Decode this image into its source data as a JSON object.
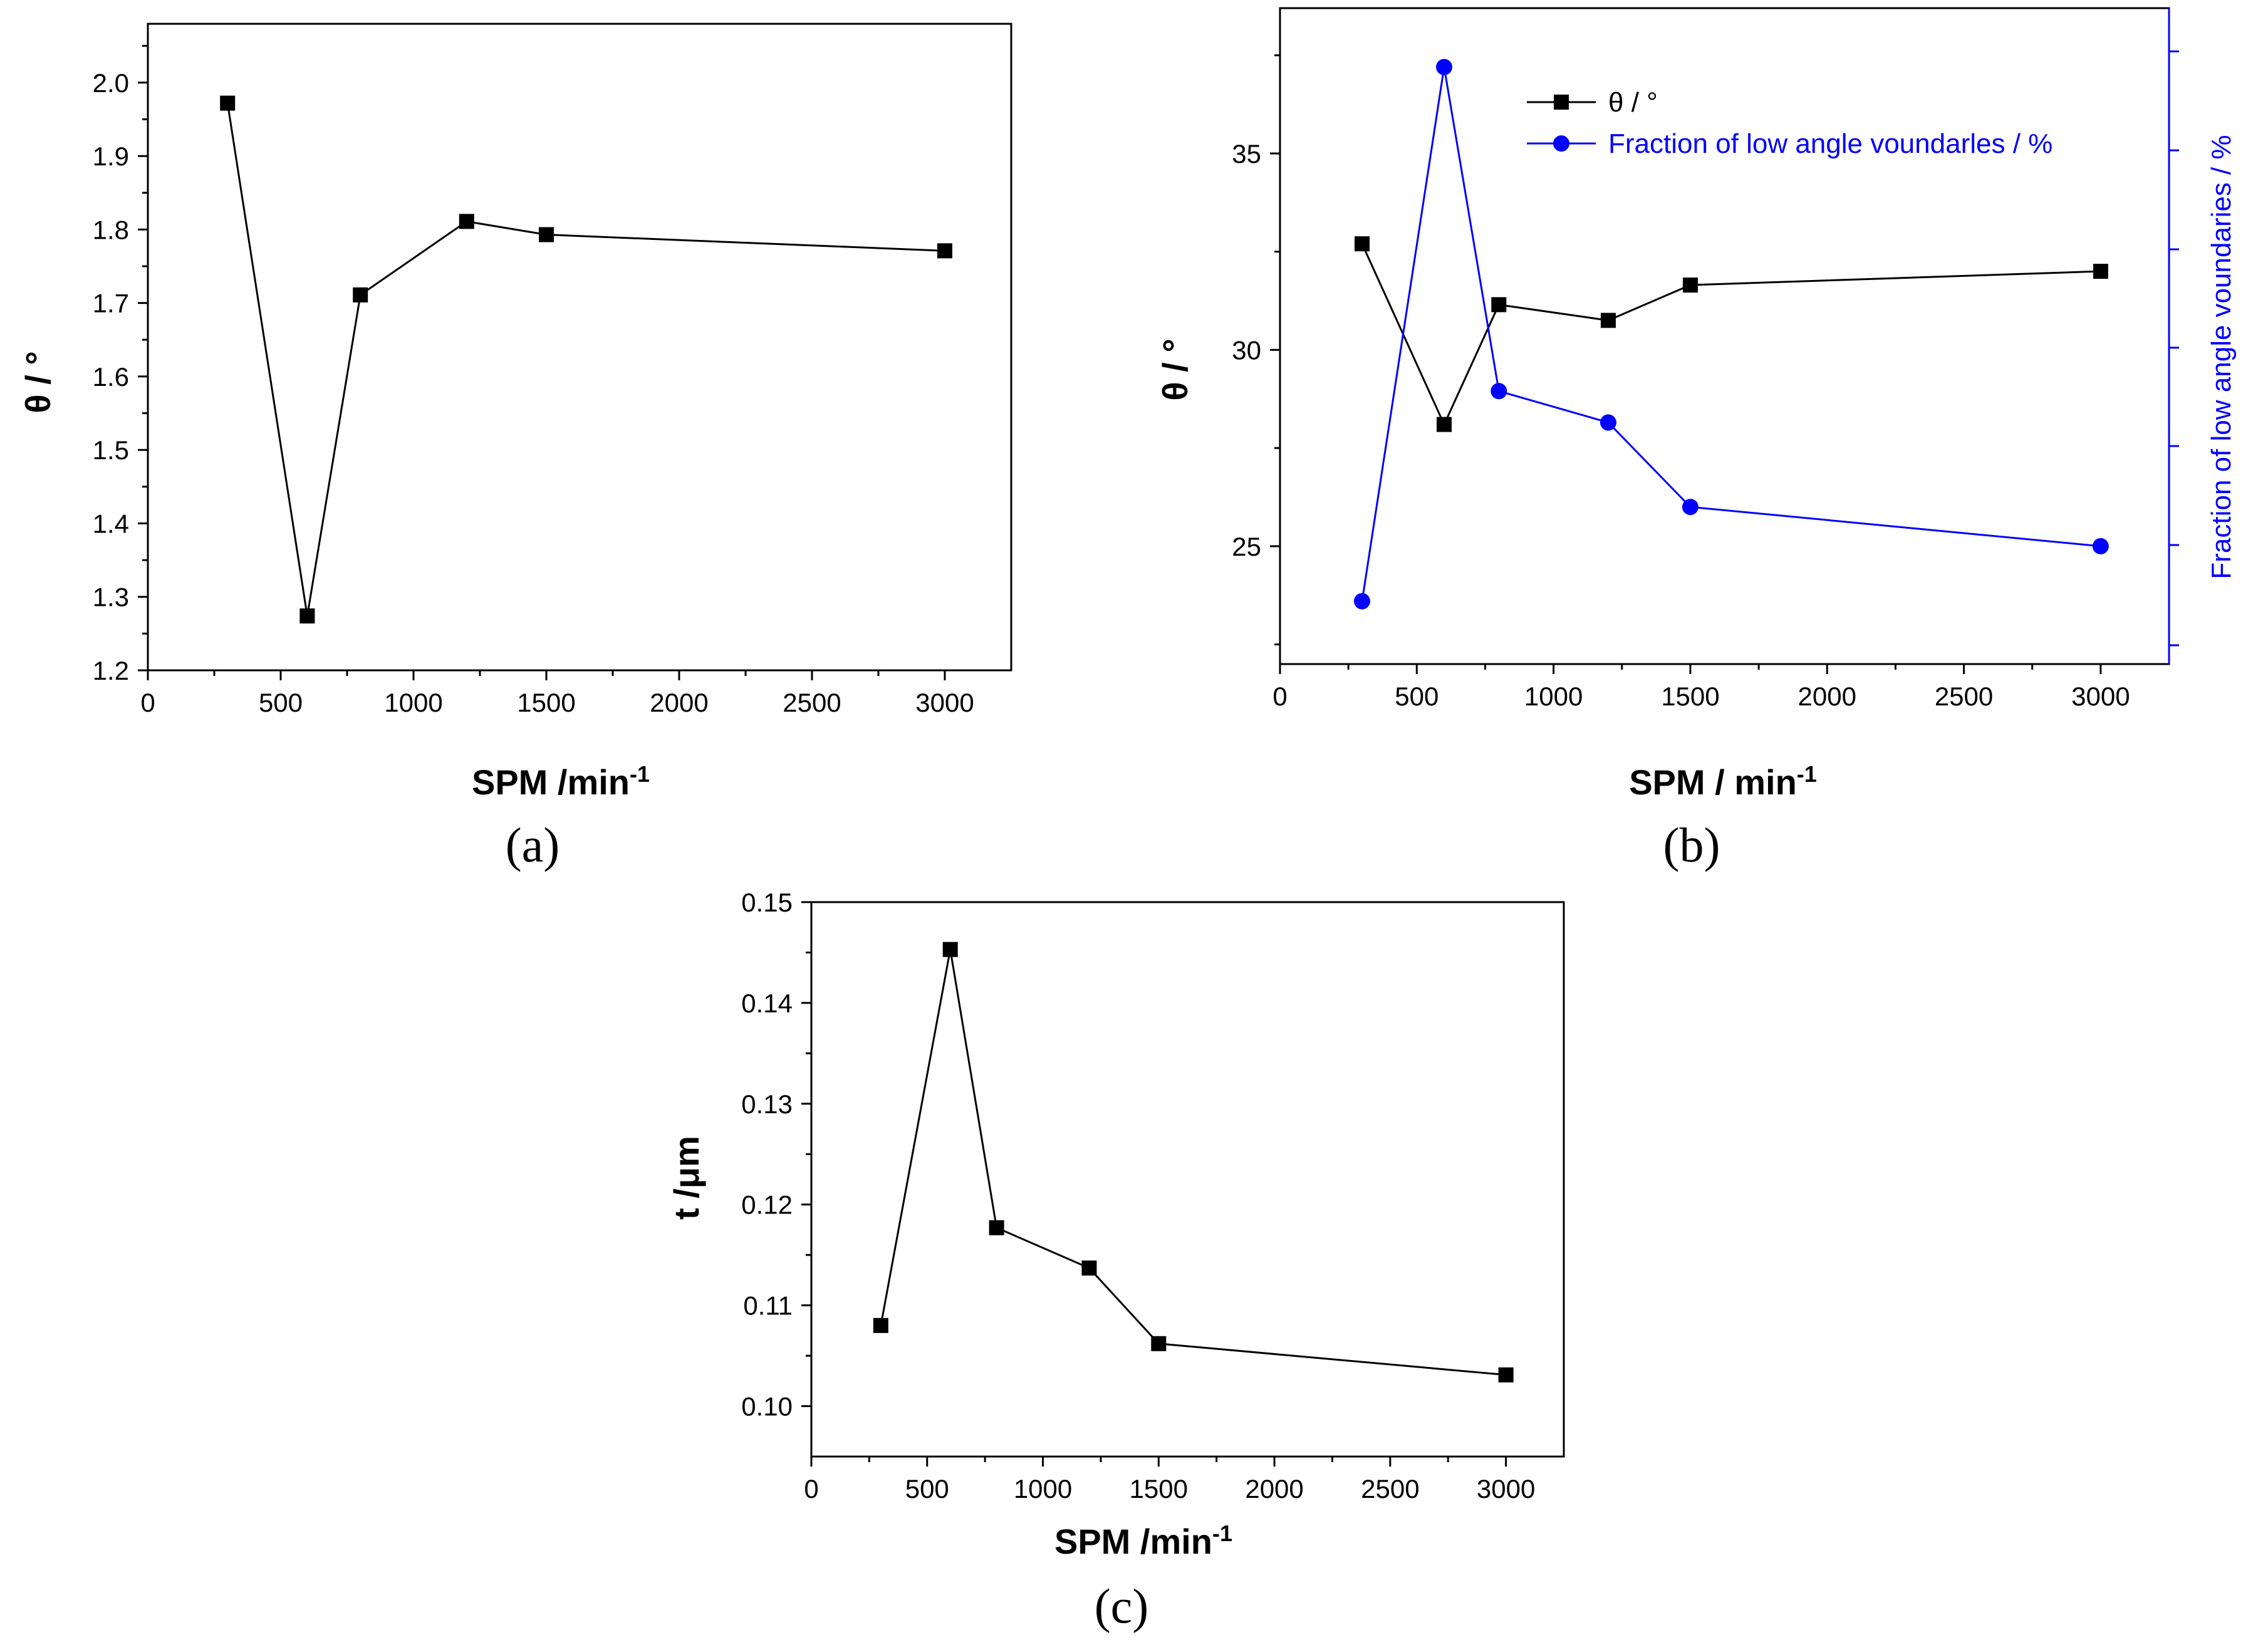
{
  "chart_data": [
    {
      "panel_label": "(a)",
      "type": "line",
      "xlabel": "SPM /min",
      "xlabel_sup": "-1",
      "ylabel": "θ / °",
      "xlim": [
        0,
        3250
      ],
      "ylim": [
        1.2,
        2.08
      ],
      "xticks": [
        "0",
        "500",
        "1000",
        "1500",
        "2000",
        "2500",
        "3000"
      ],
      "yticks": [
        "1.2",
        "1.3",
        "1.4",
        "1.5",
        "1.6",
        "1.7",
        "1.8",
        "1.9",
        "2.0"
      ],
      "x": [
        300,
        600,
        800,
        1200,
        1500,
        3000
      ],
      "series": [
        {
          "name": "θ / °",
          "values": [
            1.972,
            1.274,
            1.711,
            1.811,
            1.793,
            1.771
          ],
          "color": "#000000",
          "marker": "square"
        }
      ]
    },
    {
      "panel_label": "(b)",
      "type": "line",
      "xlabel": "SPM / min",
      "xlabel_sup": "-1",
      "ylabel": "θ / °",
      "ylabel_right": "Fraction of low angle voundaries / %",
      "xlim": [
        0,
        3250
      ],
      "ylim": [
        22,
        38.7
      ],
      "xticks": [
        "0",
        "500",
        "1000",
        "1500",
        "2000",
        "2500",
        "3000"
      ],
      "yticks": [
        "25",
        "30",
        "35"
      ],
      "x": [
        300,
        600,
        800,
        1200,
        1500,
        3000
      ],
      "series": [
        {
          "name": "θ / °",
          "values": [
            32.7,
            28.1,
            31.15,
            30.75,
            31.65,
            32.0
          ],
          "color": "#000000",
          "marker": "square",
          "axis": "left"
        },
        {
          "name": "Fraction of low angle voundarles / %",
          "values": [
            23.6,
            37.2,
            28.95,
            28.15,
            26.0,
            25.0
          ],
          "color": "#0000ff",
          "marker": "circle",
          "axis": "right"
        }
      ],
      "legend_position": "top-right"
    },
    {
      "panel_label": "(c)",
      "type": "line",
      "xlabel": "SPM /min",
      "xlabel_sup": "-1",
      "ylabel": "t /μm",
      "xlim": [
        0,
        3250
      ],
      "ylim": [
        0.095,
        0.15
      ],
      "xticks": [
        "0",
        "500",
        "1000",
        "1500",
        "2000",
        "2500",
        "3000"
      ],
      "yticks": [
        "0.10",
        "0.11",
        "0.12",
        "0.13",
        "0.14",
        "0.15"
      ],
      "x": [
        300,
        600,
        800,
        1200,
        1500,
        3000
      ],
      "series": [
        {
          "name": "t /μm",
          "values": [
            0.108,
            0.1453,
            0.1177,
            0.1137,
            0.1062,
            0.1031
          ],
          "color": "#000000",
          "marker": "square"
        }
      ]
    }
  ]
}
